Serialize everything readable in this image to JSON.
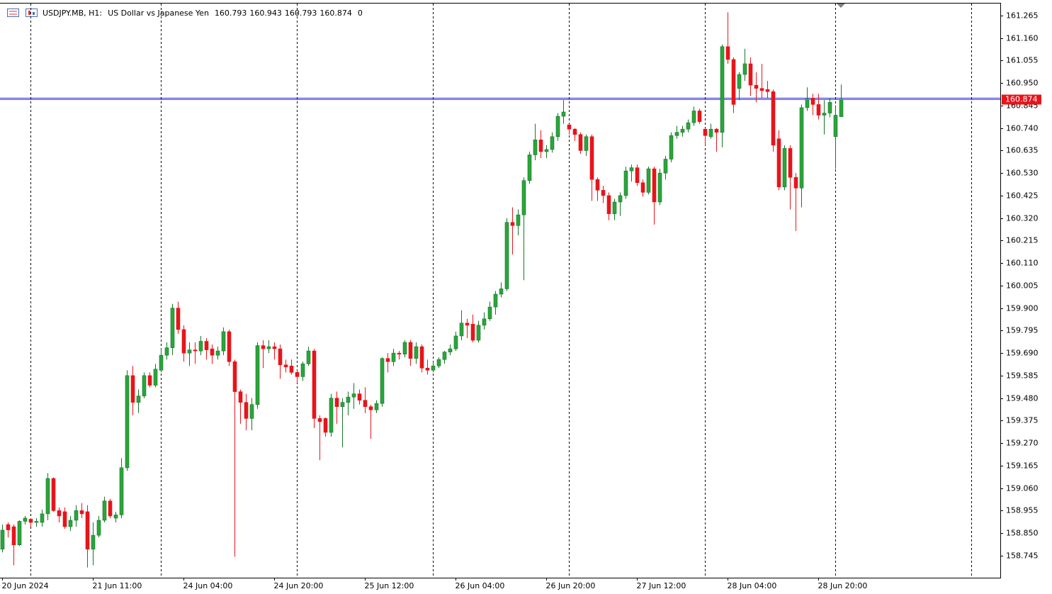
{
  "chart_data": {
    "type": "candlestick",
    "symbol": "USDJPY.MB, H1:",
    "description": "US Dollar vs Japanese Yen",
    "volume": 0,
    "categories": [
      "20 Jun 2024",
      null,
      null,
      null,
      null,
      null,
      null,
      null,
      null,
      null,
      null,
      null,
      null,
      null,
      null,
      null,
      "21 Jun 11:00",
      null,
      null,
      null,
      null,
      null,
      null,
      null,
      null,
      null,
      null,
      null,
      null,
      null,
      null,
      null,
      "24 Jun 04:00",
      null,
      null,
      null,
      null,
      null,
      null,
      null,
      null,
      null,
      null,
      null,
      null,
      null,
      null,
      null,
      "24 Jun 20:00",
      null,
      null,
      null,
      null,
      null,
      null,
      null,
      null,
      null,
      null,
      null,
      null,
      null,
      null,
      null,
      "25 Jun 12:00",
      null,
      null,
      null,
      null,
      null,
      null,
      null,
      null,
      null,
      null,
      null,
      null,
      null,
      null,
      null,
      "26 Jun 04:00",
      null,
      null,
      null,
      null,
      null,
      null,
      null,
      null,
      null,
      null,
      null,
      null,
      null,
      null,
      null,
      "26 Jun 20:00",
      null,
      null,
      null,
      null,
      null,
      null,
      null,
      null,
      null,
      null,
      null,
      null,
      null,
      null,
      null,
      "27 Jun 12:00",
      null,
      null,
      null,
      null,
      null,
      null,
      null,
      null,
      null,
      null,
      null,
      null,
      null,
      null,
      null,
      "28 Jun 04:00",
      null,
      null,
      null,
      null,
      null,
      null,
      null,
      null,
      null,
      null,
      null,
      null,
      null,
      null,
      null,
      "28 Jun 20:00",
      null,
      null,
      null,
      null
    ],
    "open": [
      158.775,
      158.89,
      158.88,
      158.795,
      158.905,
      158.915,
      158.9,
      158.9,
      158.94,
      159.105,
      158.955,
      158.95,
      158.88,
      158.91,
      158.955,
      158.95,
      158.775,
      158.84,
      158.91,
      159.0,
      158.92,
      158.935,
      159.155,
      159.585,
      159.46,
      159.49,
      159.585,
      159.54,
      159.61,
      159.68,
      159.715,
      159.9,
      159.8,
      159.69,
      159.705,
      159.7,
      159.745,
      159.71,
      159.68,
      159.7,
      159.79,
      159.65,
      159.51,
      159.46,
      159.385,
      159.45,
      159.725,
      159.71,
      159.72,
      159.71,
      159.635,
      159.63,
      159.6,
      159.58,
      159.64,
      159.7,
      159.385,
      159.385,
      159.32,
      159.48,
      159.44,
      159.46,
      159.485,
      159.5,
      159.47,
      159.44,
      159.425,
      159.455,
      159.665,
      159.65,
      159.69,
      159.685,
      159.74,
      159.665,
      159.72,
      159.62,
      159.61,
      159.63,
      159.66,
      159.695,
      159.71,
      159.77,
      159.83,
      159.825,
      159.75,
      159.82,
      159.85,
      159.905,
      159.965,
      159.99,
      160.3,
      160.285,
      160.335,
      160.495,
      160.615,
      160.685,
      160.63,
      160.64,
      160.7,
      160.795,
      160.755,
      160.735,
      160.71,
      160.635,
      160.7,
      160.5,
      160.45,
      160.425,
      160.34,
      160.395,
      160.425,
      160.54,
      160.555,
      160.485,
      160.44,
      160.55,
      160.395,
      160.53,
      160.595,
      160.705,
      160.72,
      160.735,
      160.765,
      160.82,
      160.735,
      160.7,
      160.735,
      160.72,
      161.12,
      161.06,
      160.925,
      160.99,
      161.04,
      160.94,
      160.925,
      160.92,
      160.91,
      160.69,
      160.465,
      160.645,
      160.51,
      160.46,
      160.835,
      160.88,
      160.85,
      160.8,
      160.81,
      160.7,
      160.793
    ],
    "high": [
      158.89,
      158.9,
      158.89,
      158.91,
      158.93,
      158.92,
      158.92,
      158.96,
      159.13,
      159.11,
      158.97,
      158.97,
      158.93,
      158.98,
      158.99,
      158.98,
      158.9,
      158.93,
      159.02,
      159.01,
      158.95,
      159.2,
      159.61,
      159.63,
      159.52,
      159.6,
      159.6,
      159.64,
      159.71,
      159.74,
      159.92,
      159.93,
      159.82,
      159.74,
      159.74,
      159.77,
      159.76,
      159.73,
      159.72,
      159.81,
      159.8,
      159.66,
      159.52,
      159.5,
      159.48,
      159.74,
      159.75,
      159.75,
      159.74,
      159.73,
      159.66,
      159.66,
      159.61,
      159.65,
      159.72,
      159.71,
      159.4,
      159.39,
      159.5,
      159.51,
      159.48,
      159.51,
      159.55,
      159.52,
      159.53,
      159.45,
      159.47,
      159.67,
      159.69,
      159.71,
      159.7,
      159.75,
      159.75,
      159.74,
      159.73,
      159.66,
      159.65,
      159.67,
      159.7,
      159.73,
      159.79,
      159.89,
      159.85,
      159.87,
      159.84,
      159.88,
      159.93,
      159.98,
      160.02,
      160.32,
      160.37,
      160.36,
      160.51,
      160.63,
      160.76,
      160.73,
      160.66,
      160.72,
      160.81,
      160.87,
      160.76,
      160.74,
      160.72,
      160.71,
      160.71,
      160.51,
      160.47,
      160.44,
      160.41,
      160.44,
      160.56,
      160.57,
      160.57,
      160.5,
      160.56,
      160.56,
      160.55,
      160.61,
      160.72,
      160.75,
      160.75,
      160.78,
      160.84,
      160.83,
      160.74,
      160.76,
      160.74,
      161.13,
      161.28,
      161.07,
      161.0,
      161.11,
      161.07,
      161.0,
      161.04,
      160.96,
      160.92,
      160.73,
      160.66,
      160.66,
      160.53,
      160.85,
      160.93,
      160.9,
      160.9,
      160.87,
      160.88,
      160.84,
      160.943
    ],
    "low": [
      158.76,
      158.83,
      158.7,
      158.79,
      158.89,
      158.88,
      158.88,
      158.88,
      158.91,
      158.95,
      158.9,
      158.87,
      158.86,
      158.88,
      158.92,
      158.69,
      158.7,
      158.83,
      158.9,
      158.92,
      158.9,
      158.92,
      159.14,
      159.4,
      159.41,
      159.48,
      159.53,
      159.53,
      159.6,
      159.66,
      159.68,
      159.78,
      159.65,
      159.63,
      159.64,
      159.68,
      159.66,
      159.64,
      159.66,
      159.68,
      159.63,
      158.74,
      159.36,
      159.33,
      159.33,
      159.43,
      159.62,
      159.69,
      159.66,
      159.57,
      159.6,
      159.59,
      159.55,
      159.56,
      159.63,
      159.34,
      159.19,
      159.3,
      159.3,
      159.36,
      159.25,
      159.4,
      159.43,
      159.45,
      159.41,
      159.29,
      159.41,
      159.44,
      159.6,
      159.63,
      159.66,
      159.67,
      159.63,
      159.64,
      159.6,
      159.59,
      159.6,
      159.62,
      159.64,
      159.68,
      159.7,
      159.75,
      159.76,
      159.74,
      159.74,
      159.8,
      159.84,
      159.87,
      159.95,
      159.98,
      160.15,
      160.24,
      160.03,
      160.48,
      160.59,
      160.6,
      160.6,
      160.625,
      160.68,
      160.76,
      160.71,
      160.68,
      160.62,
      160.61,
      160.4,
      160.4,
      160.39,
      160.31,
      160.31,
      160.33,
      160.41,
      160.49,
      160.47,
      160.42,
      160.43,
      160.29,
      160.38,
      160.5,
      160.58,
      160.69,
      160.7,
      160.72,
      160.75,
      160.76,
      160.66,
      160.69,
      160.63,
      160.65,
      161.04,
      160.81,
      160.87,
      160.96,
      160.89,
      160.86,
      160.88,
      160.88,
      160.63,
      160.45,
      160.45,
      160.36,
      160.26,
      160.37,
      160.82,
      160.8,
      160.78,
      160.71,
      160.79,
      160.55,
      160.793
    ],
    "close": [
      158.864,
      158.865,
      158.795,
      158.905,
      158.92,
      158.9,
      158.905,
      158.94,
      159.105,
      158.955,
      158.93,
      158.88,
      158.91,
      158.955,
      158.94,
      158.775,
      158.84,
      158.91,
      159.0,
      158.93,
      158.935,
      159.155,
      159.585,
      159.46,
      159.49,
      159.585,
      159.54,
      159.615,
      159.68,
      159.715,
      159.9,
      159.8,
      159.69,
      159.705,
      159.7,
      159.745,
      159.705,
      159.68,
      159.7,
      159.79,
      159.65,
      159.51,
      159.46,
      159.385,
      159.45,
      159.725,
      159.71,
      159.72,
      159.71,
      159.635,
      159.625,
      159.6,
      159.58,
      159.64,
      159.7,
      159.385,
      159.37,
      159.32,
      159.48,
      159.44,
      159.46,
      159.485,
      159.5,
      159.47,
      159.44,
      159.425,
      159.455,
      159.665,
      159.65,
      159.69,
      159.685,
      159.74,
      159.665,
      159.72,
      159.62,
      159.61,
      159.63,
      159.66,
      159.695,
      159.71,
      159.77,
      159.83,
      159.82,
      159.75,
      159.82,
      159.85,
      159.905,
      159.965,
      159.99,
      160.3,
      160.285,
      160.335,
      160.495,
      160.615,
      160.685,
      160.63,
      160.64,
      160.7,
      160.795,
      160.815,
      160.735,
      160.71,
      160.635,
      160.7,
      160.5,
      160.45,
      160.425,
      160.34,
      160.395,
      160.425,
      160.54,
      160.555,
      160.485,
      160.44,
      160.55,
      160.395,
      160.53,
      160.595,
      160.705,
      160.72,
      160.735,
      160.765,
      160.82,
      160.77,
      160.705,
      160.735,
      160.72,
      161.12,
      161.06,
      160.85,
      160.99,
      161.04,
      160.94,
      160.925,
      160.915,
      160.91,
      160.66,
      160.465,
      160.645,
      160.51,
      160.46,
      160.835,
      160.875,
      160.85,
      160.8,
      160.81,
      160.86,
      160.8,
      160.874
    ],
    "up_color": "#2aa53a",
    "up_edge": "#17752a",
    "down_color": "#e8141b",
    "last_price": 160.874,
    "last_color": "#e8141b",
    "ask_price": 160.882,
    "ask_color": "#1c1cd6",
    "ylim": [
      158.642,
      161.321
    ],
    "yticks": [
      161.265,
      {
        "value": 161.16,
        "label": "161.160"
      },
      161.055,
      {
        "value": 160.95,
        "label": "160.950"
      },
      160.845,
      {
        "value": 160.74,
        "label": "160.740"
      },
      160.635,
      {
        "value": 160.53,
        "label": "160.530"
      },
      160.425,
      {
        "value": 160.32,
        "label": "160.320"
      },
      160.215,
      {
        "value": 160.11,
        "label": "160.110"
      },
      160.005,
      {
        "value": 159.9,
        "label": "159.900"
      },
      159.795,
      {
        "value": 159.69,
        "label": "159.690"
      },
      159.585,
      {
        "value": 159.48,
        "label": "159.480"
      },
      159.375,
      {
        "value": 159.27,
        "label": "159.270"
      },
      159.165,
      {
        "value": 159.06,
        "label": "159.060"
      },
      158.955,
      {
        "value": 158.85,
        "label": "158.850"
      },
      158.745
    ],
    "grid": false
  }
}
